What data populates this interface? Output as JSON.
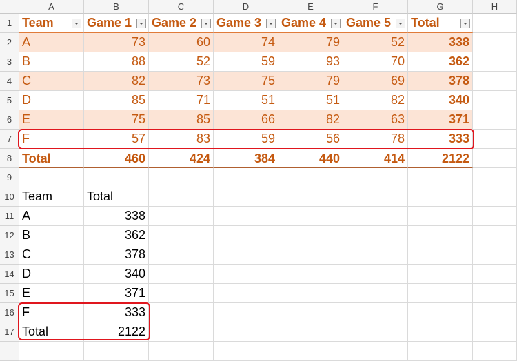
{
  "columns": [
    "A",
    "B",
    "C",
    "D",
    "E",
    "F",
    "G",
    "H"
  ],
  "rows": [
    "1",
    "2",
    "3",
    "4",
    "5",
    "6",
    "7",
    "8",
    "9",
    "10",
    "11",
    "12",
    "13",
    "14",
    "15",
    "16",
    "17"
  ],
  "table": {
    "headers": [
      "Team",
      "Game 1",
      "Game 2",
      "Game 3",
      "Game 4",
      "Game 5",
      "Total"
    ],
    "data": [
      [
        "A",
        "73",
        "60",
        "74",
        "79",
        "52",
        "338"
      ],
      [
        "B",
        "88",
        "52",
        "59",
        "93",
        "70",
        "362"
      ],
      [
        "C",
        "82",
        "73",
        "75",
        "79",
        "69",
        "378"
      ],
      [
        "D",
        "85",
        "71",
        "51",
        "51",
        "82",
        "340"
      ],
      [
        "E",
        "75",
        "85",
        "66",
        "82",
        "63",
        "371"
      ],
      [
        "F",
        "57",
        "83",
        "59",
        "56",
        "78",
        "333"
      ]
    ],
    "totals": [
      "Total",
      "460",
      "424",
      "384",
      "440",
      "414",
      "2122"
    ]
  },
  "summary": {
    "headers": [
      "Team",
      "Total"
    ],
    "data": [
      [
        "A",
        "338"
      ],
      [
        "B",
        "362"
      ],
      [
        "C",
        "378"
      ],
      [
        "D",
        "340"
      ],
      [
        "E",
        "371"
      ],
      [
        "F",
        "333"
      ],
      [
        "Total",
        "2122"
      ]
    ]
  },
  "colors": {
    "table_text": "#C55A11",
    "band": "#FCE4D6",
    "highlight": "#E0161E"
  }
}
